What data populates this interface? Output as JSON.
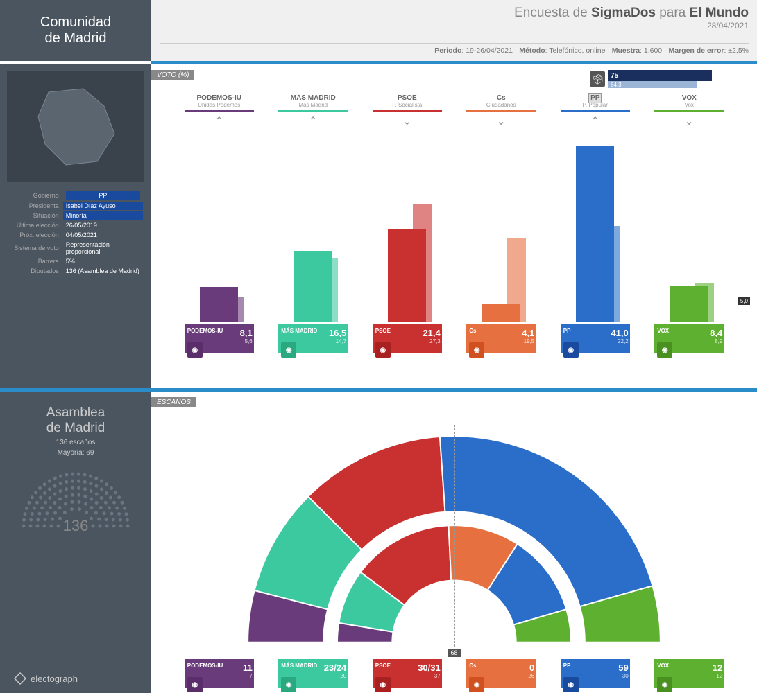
{
  "region": {
    "line1": "Comunidad",
    "line2": "de Madrid"
  },
  "poll": {
    "prefix": "Encuesta de ",
    "agency": "SigmaDos",
    "mid": " para ",
    "media": "El Mundo",
    "date": "28/04/2021",
    "meta_period_label": "Periodo",
    "meta_period": "19-26/04/2021",
    "meta_method_label": "Método",
    "meta_method": "Telefónico, online",
    "meta_sample_label": "Muestra",
    "meta_sample": "1.600",
    "meta_moe_label": "Margen de error",
    "meta_moe": "±2,5%"
  },
  "info": {
    "gov_label": "Gobierno",
    "gov": "PP",
    "pres_label": "Presidenta",
    "pres": "Isabel Díaz Ayuso",
    "sit_label": "Situación",
    "sit": "Minoría",
    "last_label": "Última elección",
    "last": "26/05/2019",
    "next_label": "Próx. elección",
    "next": "04/05/2021",
    "sys_label": "Sistema de voto",
    "sys": "Representación proporcional",
    "bar_label": "Barrera",
    "bar": "5%",
    "dep_label": "Diputados",
    "dep": "136 (Asamblea de Madrid)"
  },
  "section_vote": "VOTO (%)",
  "section_seats": "ESCAÑOS",
  "turnout": {
    "new": 75,
    "new_label": "75",
    "old": 64.3,
    "old_label": "64,3"
  },
  "threshold": {
    "value": 5.0,
    "label": "5,0"
  },
  "max_pct": 45,
  "parties": [
    {
      "code": "PODEMOS-IU",
      "sub": "Unidas Podemos",
      "color": "#6a3b7a",
      "icon_bg": "#5a2e6a",
      "dir": "up",
      "pct": 8.1,
      "pct_label": "8,1",
      "prev": 5.6,
      "prev_label": "5,6",
      "seats": "11",
      "seats_prev": "7",
      "highlight": false
    },
    {
      "code": "MÁS MADRID",
      "sub": "Más Madrid",
      "color": "#3dc9a0",
      "icon_bg": "#2aa880",
      "dir": "up",
      "pct": 16.5,
      "pct_label": "16,5",
      "prev": 14.7,
      "prev_label": "14,7",
      "seats": "23/24",
      "seats_prev": "20",
      "highlight": false
    },
    {
      "code": "PSOE",
      "sub": "P. Socialista",
      "color": "#c93030",
      "icon_bg": "#a82020",
      "dir": "down",
      "pct": 21.4,
      "pct_label": "21,4",
      "prev": 27.3,
      "prev_label": "27,3",
      "seats": "30/31",
      "seats_prev": "37",
      "highlight": false
    },
    {
      "code": "Cs",
      "sub": "Ciudadanos",
      "color": "#e67040",
      "icon_bg": "#d05020",
      "dir": "down",
      "pct": 4.1,
      "pct_label": "4,1",
      "prev": 19.5,
      "prev_label": "19,5",
      "seats": "0",
      "seats_prev": "26",
      "highlight": false
    },
    {
      "code": "PP",
      "sub": "P. Popular",
      "color": "#2a6ec9",
      "icon_bg": "#1a4a9e",
      "dir": "up",
      "pct": 41.0,
      "pct_label": "41,0",
      "prev": 22.2,
      "prev_label": "22,2",
      "seats": "59",
      "seats_prev": "30",
      "highlight": true
    },
    {
      "code": "VOX",
      "sub": "Vox",
      "color": "#5eb030",
      "icon_bg": "#4a9020",
      "dir": "down",
      "pct": 8.4,
      "pct_label": "8,4",
      "prev": 8.9,
      "prev_label": "8,9",
      "seats": "12",
      "seats_prev": "12",
      "highlight": false
    }
  ],
  "assembly": {
    "name1": "Asamblea",
    "name2": "de Madrid",
    "seats_text": "136 escaños",
    "majority_text": "Mayoría: 69",
    "total": "136"
  },
  "arc_outer": [
    {
      "color": "#6a3b7a",
      "seats": 11
    },
    {
      "color": "#3dc9a0",
      "seats": 23
    },
    {
      "color": "#c93030",
      "seats": 31
    },
    {
      "color": "#2a6ec9",
      "seats": 59
    },
    {
      "color": "#5eb030",
      "seats": 12
    }
  ],
  "arc_inner": [
    {
      "color": "#6a3b7a",
      "seats": 7
    },
    {
      "color": "#3dc9a0",
      "seats": 20
    },
    {
      "color": "#c93030",
      "seats": 37
    },
    {
      "color": "#e67040",
      "seats": 26
    },
    {
      "color": "#2a6ec9",
      "seats": 30
    },
    {
      "color": "#5eb030",
      "seats": 12
    }
  ],
  "majority_marker": "68",
  "brand": "electograph"
}
